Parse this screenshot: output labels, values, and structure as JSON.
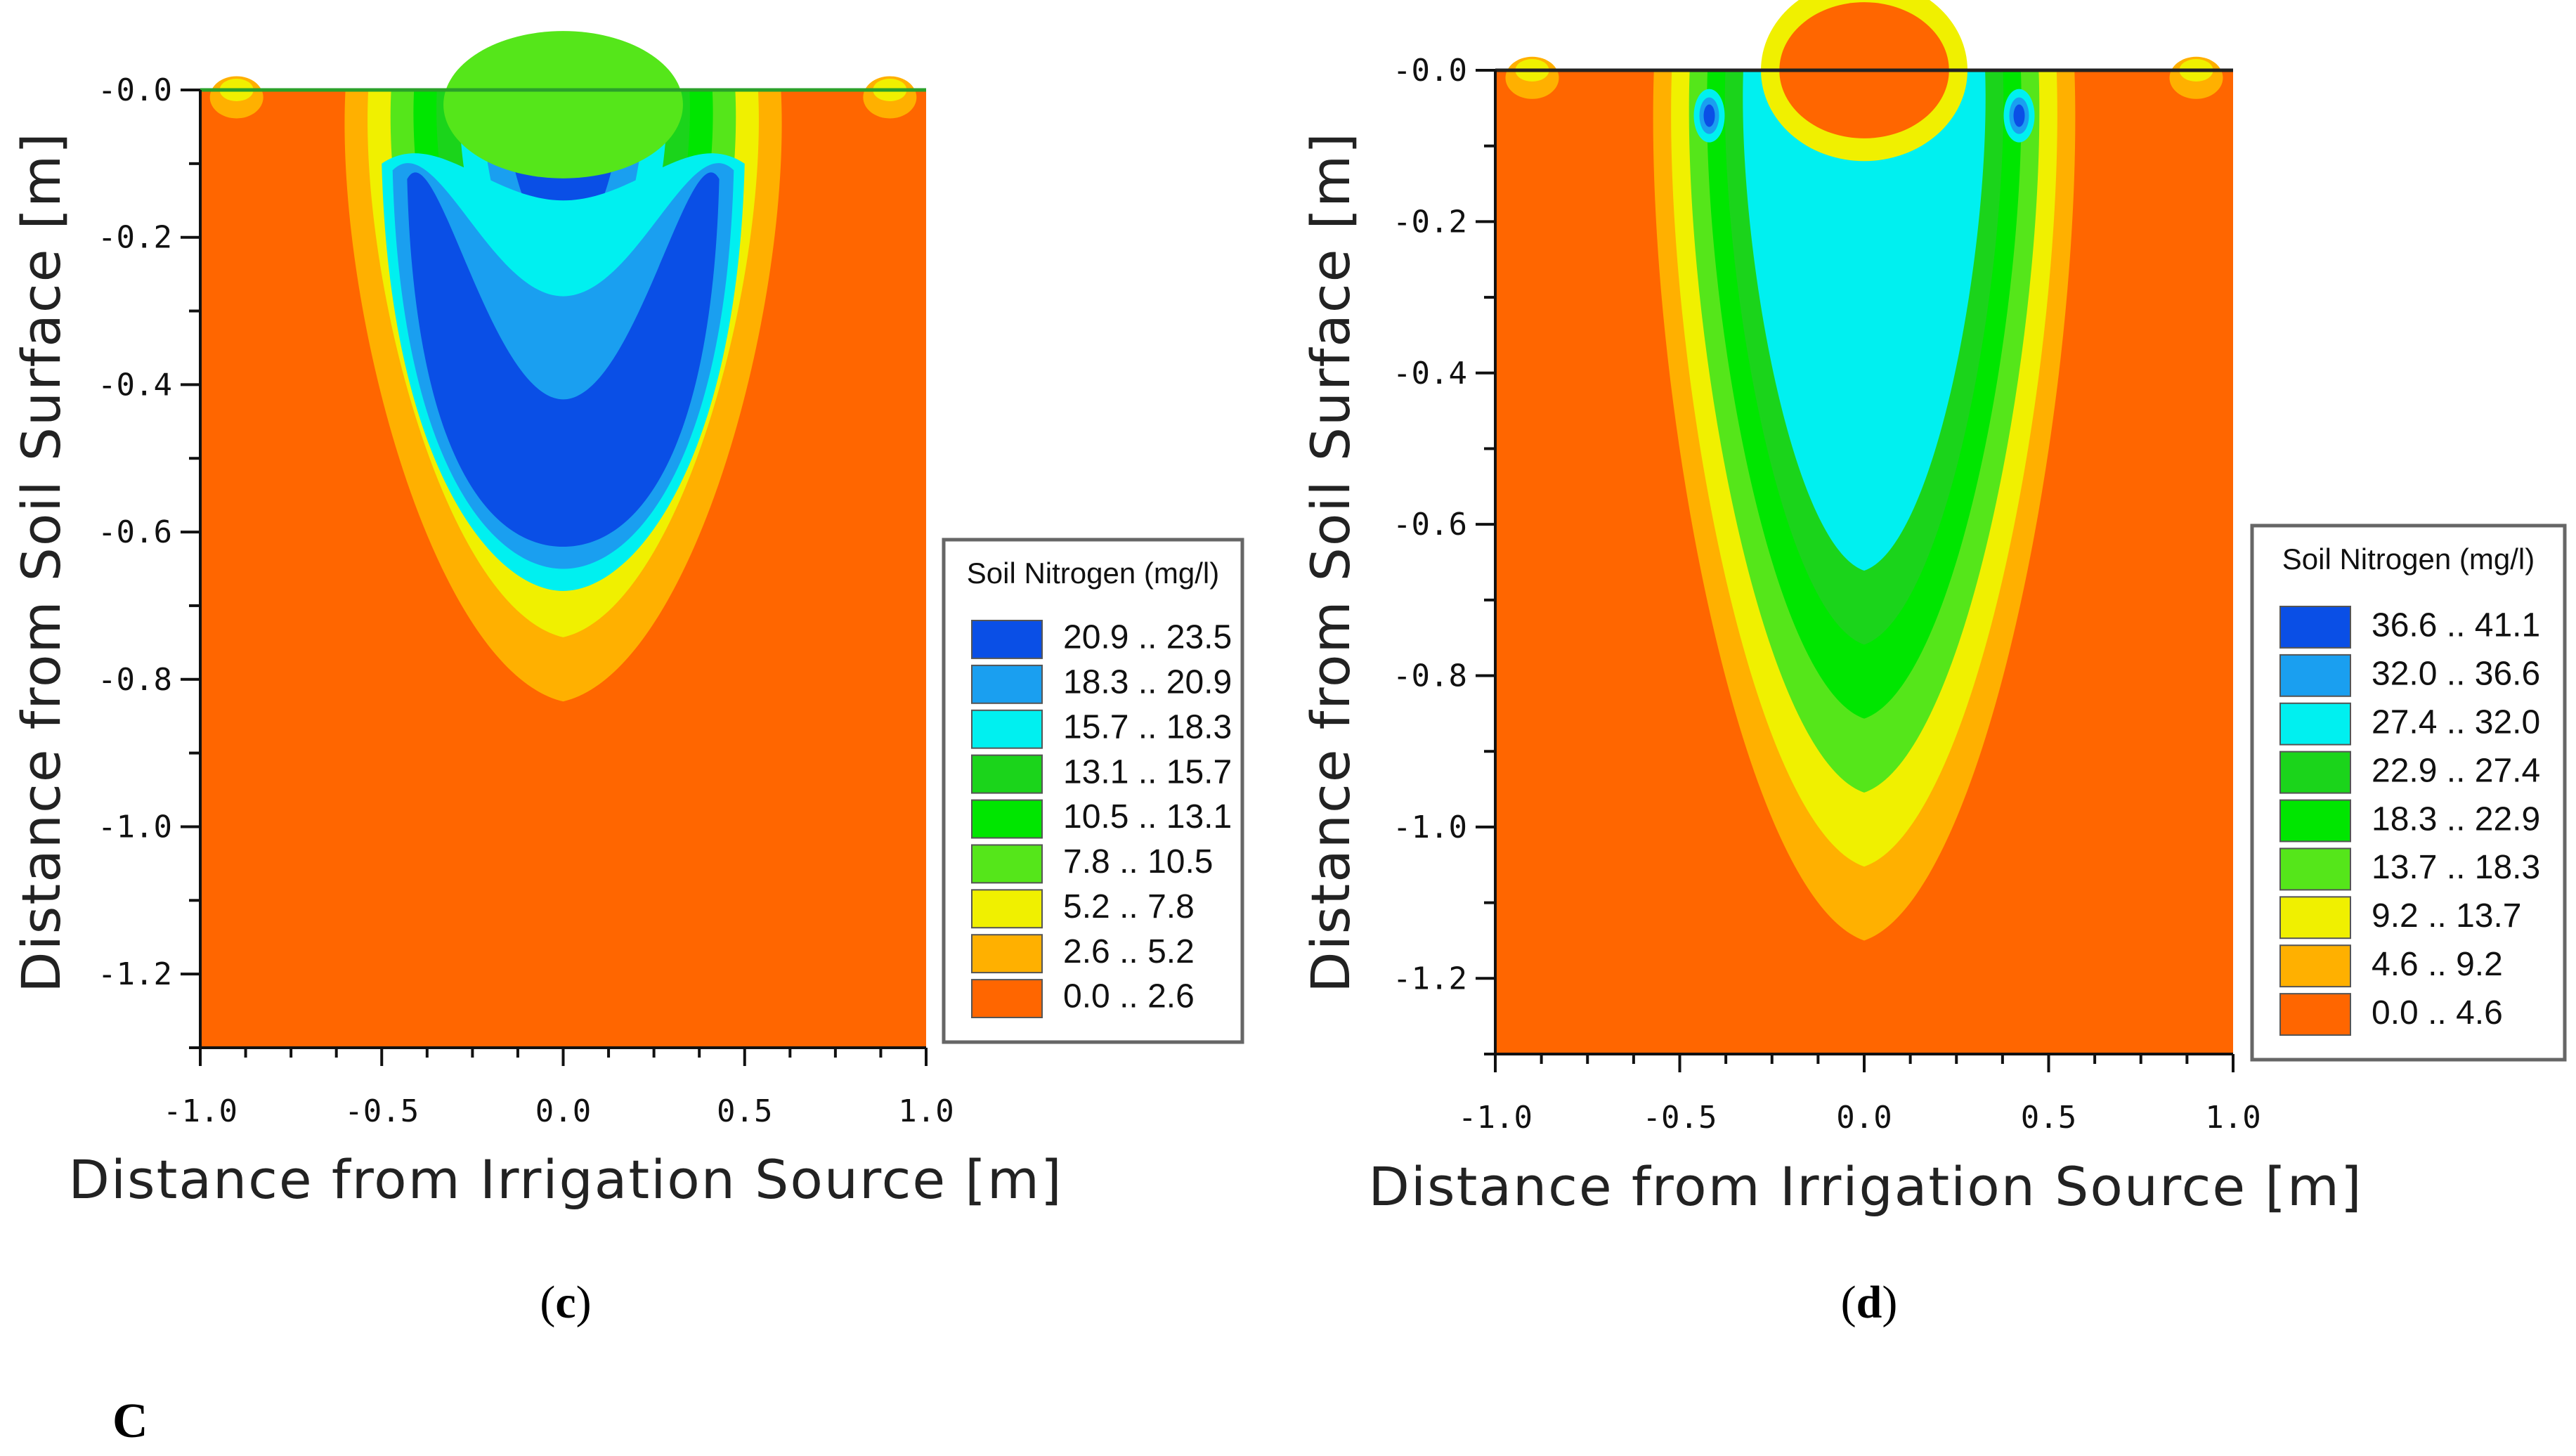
{
  "figure_label": "C",
  "chart_data": [
    {
      "type": "heatmap",
      "panel": "c",
      "caption_open": "(",
      "caption_letter": "c",
      "caption_close": ")",
      "xlabel": "Distance from Irrigation Source [m]",
      "ylabel": "Distance from Soil Surface [m]",
      "xlim": [
        -1.0,
        1.0
      ],
      "ylim": [
        -1.3,
        0.0
      ],
      "xticks": [
        "-1.0",
        "-0.5",
        "0.0",
        "0.5",
        "1.0"
      ],
      "yticks": [
        "-0.0",
        "-0.2",
        "-0.4",
        "-0.6",
        "-0.8",
        "-1.0",
        "-1.2"
      ],
      "legend_title": "Soil Nitrogen (mg/l)",
      "legend": [
        {
          "range": "20.9 .. 23.5",
          "color": "#0a4fe6"
        },
        {
          "range": "18.3 .. 20.9",
          "color": "#1a9ff0"
        },
        {
          "range": "15.7 .. 18.3",
          "color": "#00f0f0"
        },
        {
          "range": "13.1 .. 15.7",
          "color": "#1bd41b"
        },
        {
          "range": "10.5 .. 13.1",
          "color": "#00e600"
        },
        {
          "range": "7.8 .. 10.5",
          "color": "#55e61a"
        },
        {
          "range": "5.2 .. 7.8",
          "color": "#f0f000"
        },
        {
          "range": "2.6 .. 5.2",
          "color": "#ffb000"
        },
        {
          "range": "0.0 .. 2.6",
          "color": "#ff6600"
        }
      ],
      "plume_max_depth_m": -0.83,
      "plume_half_width_m": 0.6
    },
    {
      "type": "heatmap",
      "panel": "d",
      "caption_open": "(",
      "caption_letter": "d",
      "caption_close": ")",
      "xlabel": "Distance from Irrigation Source [m]",
      "ylabel": "Distance from Soil Surface [m]",
      "xlim": [
        -1.0,
        1.0
      ],
      "ylim": [
        -1.3,
        0.0
      ],
      "xticks": [
        "-1.0",
        "-0.5",
        "0.0",
        "0.5",
        "1.0"
      ],
      "yticks": [
        "-0.0",
        "-0.2",
        "-0.4",
        "-0.6",
        "-0.8",
        "-1.0",
        "-1.2"
      ],
      "legend_title": "Soil Nitrogen (mg/l)",
      "legend": [
        {
          "range": "36.6 .. 41.1",
          "color": "#0a4fe6"
        },
        {
          "range": "32.0 .. 36.6",
          "color": "#1a9ff0"
        },
        {
          "range": "27.4 .. 32.0",
          "color": "#00f0f0"
        },
        {
          "range": "22.9 .. 27.4",
          "color": "#1bd41b"
        },
        {
          "range": "18.3 .. 22.9",
          "color": "#00e600"
        },
        {
          "range": "13.7 .. 18.3",
          "color": "#55e61a"
        },
        {
          "range": "9.2 .. 13.7",
          "color": "#f0f000"
        },
        {
          "range": "4.6 .. 9.2",
          "color": "#ffb000"
        },
        {
          "range": "0.0 .. 4.6",
          "color": "#ff6600"
        }
      ],
      "plume_max_depth_m": -1.15,
      "plume_half_width_m": 0.57
    }
  ]
}
